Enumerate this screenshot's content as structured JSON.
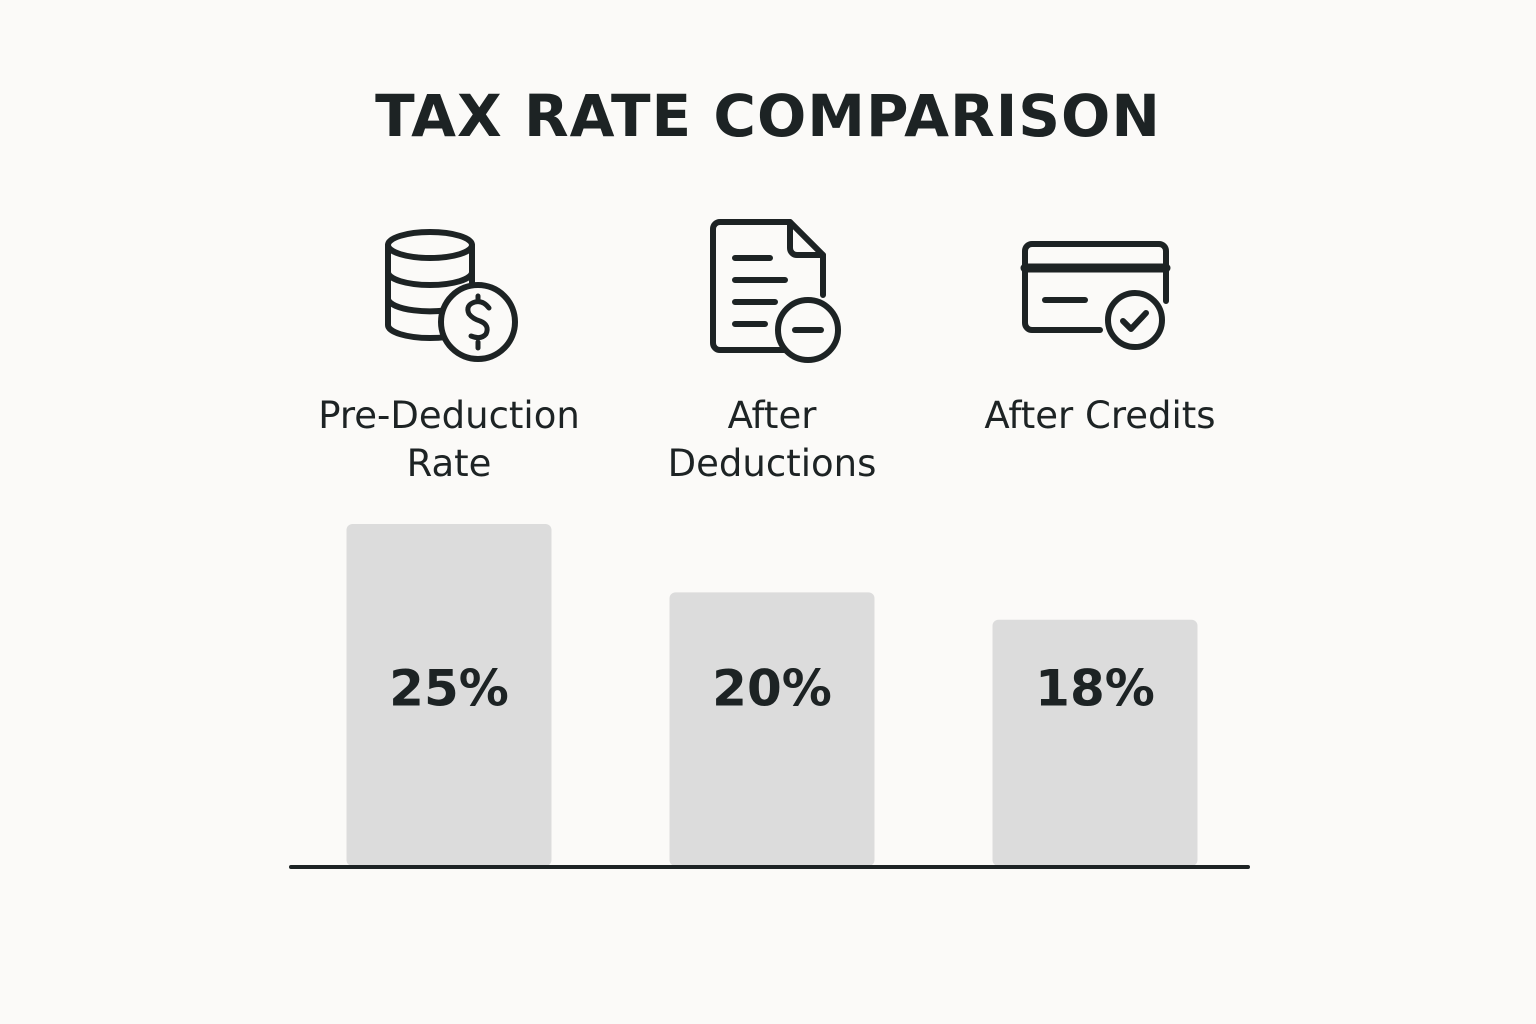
{
  "chart_data": {
    "type": "bar",
    "title": "TAX RATE COMPARISON",
    "categories": [
      "Pre-Deduction Rate",
      "After Deductions",
      "After Credits"
    ],
    "values": [
      25,
      20,
      18
    ],
    "value_labels": [
      "25%",
      "20%",
      "18%"
    ],
    "color": "#dcdcdc"
  }
}
